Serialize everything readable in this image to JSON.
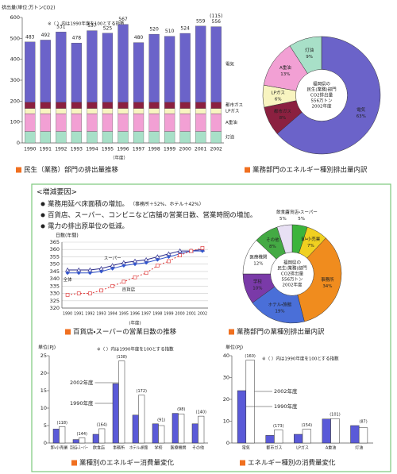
{
  "chart_data": [
    {
      "type": "stacked_bar",
      "title": "民生（業務）部門の排出量推移",
      "y_label": "排出量(単位:万トンCO2)",
      "x_label": "（年度）",
      "note": "※（ ）内は1990年度を100とする指数",
      "categories": [
        "1990",
        "1991",
        "1992",
        "1993",
        "1994",
        "1995",
        "1996",
        "1997",
        "1998",
        "1999",
        "2000",
        "2001",
        "2002"
      ],
      "series": [
        {
          "name": "灯油",
          "color": "#a8e0c8",
          "values": [
            55,
            55,
            55,
            55,
            55,
            55,
            55,
            55,
            55,
            55,
            55,
            55,
            55
          ]
        },
        {
          "name": "A重油",
          "color": "#f2a0d4",
          "values": [
            85,
            85,
            85,
            85,
            85,
            85,
            85,
            85,
            85,
            85,
            85,
            85,
            85
          ]
        },
        {
          "name": "LPガス",
          "color": "#f8f4c0",
          "values": [
            25,
            25,
            25,
            25,
            25,
            25,
            25,
            25,
            25,
            25,
            25,
            25,
            25
          ]
        },
        {
          "name": "都市ガス",
          "color": "#8b2040",
          "values": [
            30,
            30,
            30,
            30,
            30,
            30,
            30,
            30,
            30,
            30,
            30,
            30,
            30
          ]
        },
        {
          "name": "電気",
          "color": "#6b63c9",
          "values": [
            288,
            297,
            336,
            283,
            342,
            330,
            372,
            285,
            325,
            315,
            329,
            364,
            361
          ]
        }
      ],
      "totals": [
        483,
        492,
        531,
        478,
        537,
        525,
        567,
        480,
        520,
        510,
        524,
        559,
        556
      ],
      "annotation": "(115)",
      "ylim": [
        0,
        600
      ],
      "yticks": [
        0,
        100,
        200,
        300,
        400,
        500,
        600
      ],
      "grid": false
    },
    {
      "type": "pie",
      "title": "業務部門のエネルギー種別排出量内訳",
      "center_text": [
        "福岡県の",
        "民生(業務)部門",
        "CO2排出量",
        "556万トン",
        "2002年度"
      ],
      "categories": [
        "電気",
        "都市ガス",
        "LPガス",
        "A重油",
        "灯油"
      ],
      "values": [
        63,
        8,
        6,
        13,
        9
      ],
      "value_labels": [
        "63%",
        "8%",
        "6%",
        "13%",
        "9%"
      ],
      "colors": [
        "#6b63c9",
        "#8b2040",
        "#f8f4c0",
        "#f2a0d4",
        "#a8e0c8"
      ]
    },
    {
      "type": "line",
      "title": "百貨店・スーパーの営業日数の推移",
      "y_label": "日数(年間)",
      "x_label": "(年度)",
      "categories": [
        "1990",
        "1991",
        "1992",
        "1993",
        "1994",
        "1995",
        "1996",
        "1997",
        "1998",
        "1999",
        "2000",
        "2001",
        "2002"
      ],
      "series": [
        {
          "name": "スーパー",
          "color": "#2a2a8a",
          "marker": "triangle",
          "dash": false,
          "values": [
            346,
            346,
            346,
            347,
            349,
            351,
            352,
            353,
            355,
            357,
            359,
            359,
            360
          ]
        },
        {
          "name": "全体",
          "color": "#3355cc",
          "marker": "diamond",
          "dash": false,
          "values": [
            344,
            344,
            344,
            345,
            347,
            349,
            350,
            351,
            353,
            355,
            357,
            359,
            359
          ]
        },
        {
          "name": "百貨店",
          "color": "#e04040",
          "marker": "square",
          "dash": true,
          "values": [
            329,
            330,
            330,
            332,
            335,
            338,
            341,
            344,
            349,
            352,
            356,
            359,
            361
          ]
        }
      ],
      "ylim": [
        320,
        365
      ],
      "yticks": [
        320,
        325,
        330,
        335,
        340,
        345,
        350,
        355,
        360,
        365
      ],
      "grid": true
    },
    {
      "type": "pie",
      "title": "業務部門の業種別排出量内訳",
      "center_text": [
        "福岡県の",
        "民生(業務)部門",
        "CO2排出量",
        "556万トン",
        "2002年度"
      ],
      "categories": [
        "百貨店・スーパー",
        "卸・小売業",
        "事務所",
        "ホテル・旅館",
        "学校",
        "医療機関",
        "その他",
        "飲食店"
      ],
      "values": [
        5,
        7,
        34,
        19,
        10,
        12,
        8,
        5
      ],
      "value_labels": [
        "5%",
        "7%",
        "34%",
        "19%",
        "10%",
        "12%",
        "8%",
        "5%"
      ],
      "colors": [
        "#3cb43c",
        "#f0d020",
        "#f08c1e",
        "#4a6fd8",
        "#7a3aa8",
        "#ffffff",
        "#44aa44",
        "#e8e0f4"
      ]
    },
    {
      "type": "grouped_bar",
      "title": "業種別のエネルギー消費量変化",
      "y_label": "単位(PJ)",
      "note": "※（ ）内は1990年度を100とする指数",
      "categories": [
        "卸・小売業",
        "百貨店・スーパー",
        "飲食店",
        "事務所",
        "ホテル・旅館",
        "学校",
        "医療機関",
        "その他"
      ],
      "series": [
        {
          "name": "1990年度",
          "color": "#5a5ad8",
          "values": [
            4,
            1,
            2.5,
            17,
            8,
            5.5,
            8.5,
            5.5
          ]
        },
        {
          "name": "2002年度",
          "color": "#ffffff",
          "values": [
            4.7,
            1.5,
            4.1,
            23.5,
            13.7,
            5,
            8.3,
            7.7
          ]
        }
      ],
      "index_labels": [
        "(118)",
        "(144)",
        "(164)",
        "(138)",
        "(172)",
        "(91)",
        "(98)",
        "(140)"
      ],
      "ylim": [
        0,
        25
      ],
      "yticks": [
        0,
        5,
        10,
        15,
        20,
        25
      ],
      "grid": false
    },
    {
      "type": "grouped_bar",
      "title": "エネルギー種別の消費量変化",
      "y_label": "単位(PJ)",
      "note": "※（ ）内は1990年度を100とする指数",
      "categories": [
        "電気",
        "都市ガス",
        "LPガス",
        "A重油",
        "灯油"
      ],
      "series": [
        {
          "name": "1990年度",
          "color": "#5a5ad8",
          "values": [
            24,
            3.5,
            4,
            11,
            8
          ]
        },
        {
          "name": "2002年度",
          "color": "#ffffff",
          "values": [
            38,
            6,
            6.3,
            11.2,
            7
          ]
        }
      ],
      "index_labels": [
        "(160)",
        "(173)",
        "(154)",
        "(101)",
        "(87)"
      ],
      "ylim": [
        0,
        40
      ],
      "yticks": [
        0,
        10,
        20,
        30,
        40
      ],
      "grid": false
    }
  ],
  "factors": {
    "title": "<増減要因>",
    "items": [
      {
        "text": "業務用延べ床面積の増加。",
        "note": "（事務所＋52%、ホテル＋42%）"
      },
      {
        "text": "百貨店、スーパー、コンビニなど店舗の営業日数、営業時間の増加。"
      },
      {
        "text": "電力の排出原単位の低減。"
      }
    ]
  }
}
